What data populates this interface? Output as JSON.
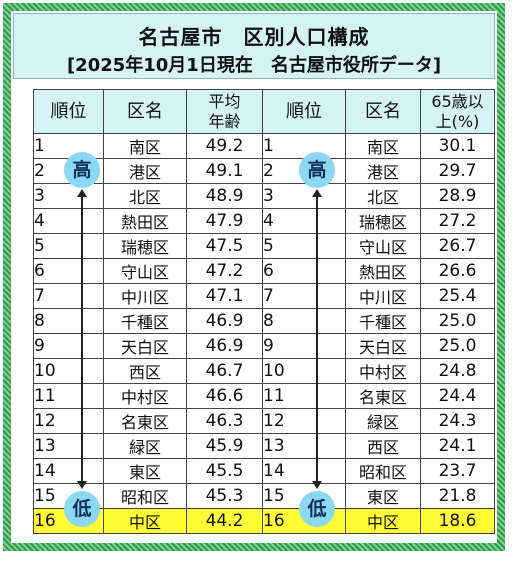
{
  "title": "名古屋市　区別人口構成",
  "subtitle": "[2025年10月1日現在　名古屋市役所データ]",
  "headers": {
    "rank": "順位",
    "ward": "区名",
    "age_line1": "平均",
    "age_line2": "年齢",
    "elderly_line1": "65歳以",
    "elderly_line2": "上(%)"
  },
  "badges": {
    "high": "高",
    "low": "低"
  },
  "colors": {
    "header_bg": "#d4f3f5",
    "highlight_row": "#ffff33",
    "badge": "#8bd8f5",
    "frame": "#2f9b48"
  },
  "rows": [
    {
      "rank": "1",
      "age_ward": "南区",
      "age": "49.2",
      "rank2": "1",
      "elderly_ward": "南区",
      "elderly": "30.1"
    },
    {
      "rank": "2",
      "age_ward": "港区",
      "age": "49.1",
      "rank2": "2",
      "elderly_ward": "港区",
      "elderly": "29.7"
    },
    {
      "rank": "3",
      "age_ward": "北区",
      "age": "48.9",
      "rank2": "3",
      "elderly_ward": "北区",
      "elderly": "28.9"
    },
    {
      "rank": "4",
      "age_ward": "熱田区",
      "age": "47.9",
      "rank2": "4",
      "elderly_ward": "瑞穂区",
      "elderly": "27.2"
    },
    {
      "rank": "5",
      "age_ward": "瑞穂区",
      "age": "47.5",
      "rank2": "5",
      "elderly_ward": "守山区",
      "elderly": "26.7"
    },
    {
      "rank": "6",
      "age_ward": "守山区",
      "age": "47.2",
      "rank2": "6",
      "elderly_ward": "熱田区",
      "elderly": "26.6"
    },
    {
      "rank": "7",
      "age_ward": "中川区",
      "age": "47.1",
      "rank2": "7",
      "elderly_ward": "中川区",
      "elderly": "25.4"
    },
    {
      "rank": "8",
      "age_ward": "千種区",
      "age": "46.9",
      "rank2": "8",
      "elderly_ward": "千種区",
      "elderly": "25.0"
    },
    {
      "rank": "9",
      "age_ward": "天白区",
      "age": "46.9",
      "rank2": "9",
      "elderly_ward": "天白区",
      "elderly": "25.0"
    },
    {
      "rank": "10",
      "age_ward": "西区",
      "age": "46.7",
      "rank2": "10",
      "elderly_ward": "中村区",
      "elderly": "24.8"
    },
    {
      "rank": "11",
      "age_ward": "中村区",
      "age": "46.6",
      "rank2": "11",
      "elderly_ward": "名東区",
      "elderly": "24.4"
    },
    {
      "rank": "12",
      "age_ward": "名東区",
      "age": "46.3",
      "rank2": "12",
      "elderly_ward": "緑区",
      "elderly": "24.3"
    },
    {
      "rank": "13",
      "age_ward": "緑区",
      "age": "45.9",
      "rank2": "13",
      "elderly_ward": "西区",
      "elderly": "24.1"
    },
    {
      "rank": "14",
      "age_ward": "東区",
      "age": "45.5",
      "rank2": "14",
      "elderly_ward": "昭和区",
      "elderly": "23.7"
    },
    {
      "rank": "15",
      "age_ward": "昭和区",
      "age": "45.3",
      "rank2": "15",
      "elderly_ward": "東区",
      "elderly": "21.8"
    },
    {
      "rank": "16",
      "age_ward": "中区",
      "age": "44.2",
      "rank2": "16",
      "elderly_ward": "中区",
      "elderly": "18.6"
    }
  ]
}
